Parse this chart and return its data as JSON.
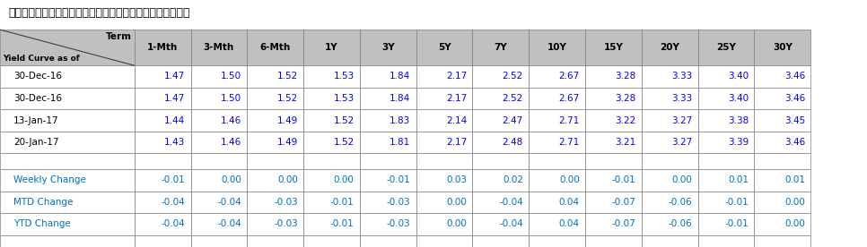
{
  "title": "อัตราผลตอบแทนพันธบัตรรัฐบาล",
  "col_headers": [
    "Term",
    "1-Mth",
    "3-Mth",
    "6-Mth",
    "1Y",
    "3Y",
    "5Y",
    "7Y",
    "10Y",
    "15Y",
    "20Y",
    "25Y",
    "30Y"
  ],
  "header_label_left": "Yield Curve as of",
  "data_rows": [
    [
      "30-Dec-16",
      "1.47",
      "1.50",
      "1.52",
      "1.53",
      "1.84",
      "2.17",
      "2.52",
      "2.67",
      "3.28",
      "3.33",
      "3.40",
      "3.46"
    ],
    [
      "30-Dec-16",
      "1.47",
      "1.50",
      "1.52",
      "1.53",
      "1.84",
      "2.17",
      "2.52",
      "2.67",
      "3.28",
      "3.33",
      "3.40",
      "3.46"
    ],
    [
      "13-Jan-17",
      "1.44",
      "1.46",
      "1.49",
      "1.52",
      "1.83",
      "2.14",
      "2.47",
      "2.71",
      "3.22",
      "3.27",
      "3.38",
      "3.45"
    ],
    [
      "20-Jan-17",
      "1.43",
      "1.46",
      "1.49",
      "1.52",
      "1.81",
      "2.17",
      "2.48",
      "2.71",
      "3.21",
      "3.27",
      "3.39",
      "3.46"
    ]
  ],
  "blank_row": [
    "",
    "",
    "",
    "",
    "",
    "",
    "",
    "",
    "",
    "",
    "",
    "",
    ""
  ],
  "change_rows": [
    [
      "Weekly Change",
      "-0.01",
      "0.00",
      "0.00",
      "0.00",
      "-0.01",
      "0.03",
      "0.02",
      "0.00",
      "-0.01",
      "0.00",
      "0.01",
      "0.01"
    ],
    [
      "MTD Change",
      "-0.04",
      "-0.04",
      "-0.03",
      "-0.01",
      "-0.03",
      "0.00",
      "-0.04",
      "0.04",
      "-0.07",
      "-0.06",
      "-0.01",
      "0.00"
    ],
    [
      "YTD Change",
      "-0.04",
      "-0.04",
      "-0.03",
      "-0.01",
      "-0.03",
      "0.00",
      "-0.04",
      "0.04",
      "-0.07",
      "-0.06",
      "-0.01",
      "0.00"
    ]
  ],
  "header_bg": "#C0C0C0",
  "data_bg_white": "#FFFFFF",
  "data_bg_light": "#F2F2F2",
  "data_color_blue": "#0000FF",
  "label_color_black": "#000000",
  "label_color_blue": "#0070C0",
  "grid_color": "#808080",
  "title_color": "#000000",
  "figsize": [
    9.66,
    2.76
  ],
  "dpi": 100
}
